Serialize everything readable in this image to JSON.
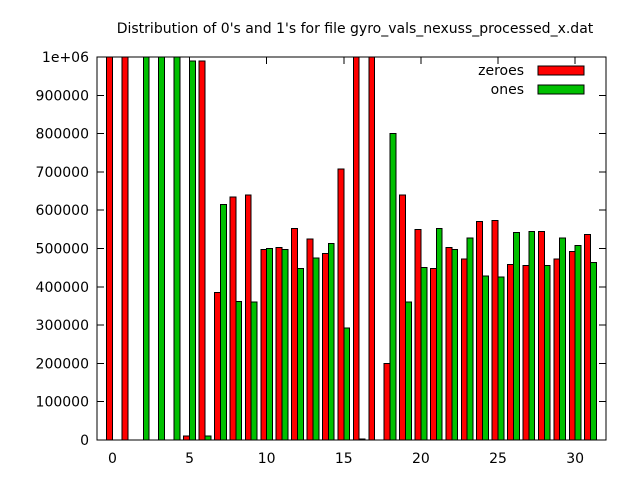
{
  "chart_data": {
    "type": "bar",
    "title": "Distribution of 0's and 1's for file gyro_vals_nexuss_processed_x.dat",
    "xlabel": "",
    "ylabel": "",
    "xlim": [
      -1,
      32
    ],
    "ylim": [
      0,
      1000000
    ],
    "xticks": [
      0,
      5,
      10,
      15,
      20,
      25,
      30
    ],
    "yticks": [
      0,
      100000,
      200000,
      300000,
      400000,
      500000,
      600000,
      700000,
      800000,
      900000,
      1000000
    ],
    "ytick_labels": [
      "0",
      "100000",
      "200000",
      "300000",
      "400000",
      "500000",
      "600000",
      "700000",
      "800000",
      "900000",
      "1e+06"
    ],
    "grid": false,
    "legend_position": "top-right",
    "categories": [
      0,
      1,
      2,
      3,
      4,
      5,
      6,
      7,
      8,
      9,
      10,
      11,
      12,
      13,
      14,
      15,
      16,
      17,
      18,
      19,
      20,
      21,
      22,
      23,
      24,
      25,
      26,
      27,
      28,
      29,
      30,
      31
    ],
    "series": [
      {
        "name": "zeroes",
        "color": "#ff0000",
        "values": [
          1000000,
          1000000,
          0,
          0,
          0,
          10000,
          990000,
          385000,
          635000,
          640000,
          497000,
          502000,
          552000,
          525000,
          487000,
          708000,
          1000000,
          1000000,
          200000,
          640000,
          550000,
          448000,
          502000,
          472000,
          570000,
          573000,
          458000,
          455000,
          545000,
          472000,
          492000,
          537000
        ]
      },
      {
        "name": "ones",
        "color": "#00c000",
        "values": [
          0,
          0,
          1000000,
          1000000,
          1000000,
          990000,
          10000,
          615000,
          362000,
          360000,
          500000,
          497000,
          448000,
          475000,
          513000,
          292000,
          2000,
          0,
          800000,
          360000,
          450000,
          552000,
          498000,
          528000,
          428000,
          425000,
          542000,
          545000,
          455000,
          528000,
          508000,
          463000
        ]
      }
    ]
  }
}
